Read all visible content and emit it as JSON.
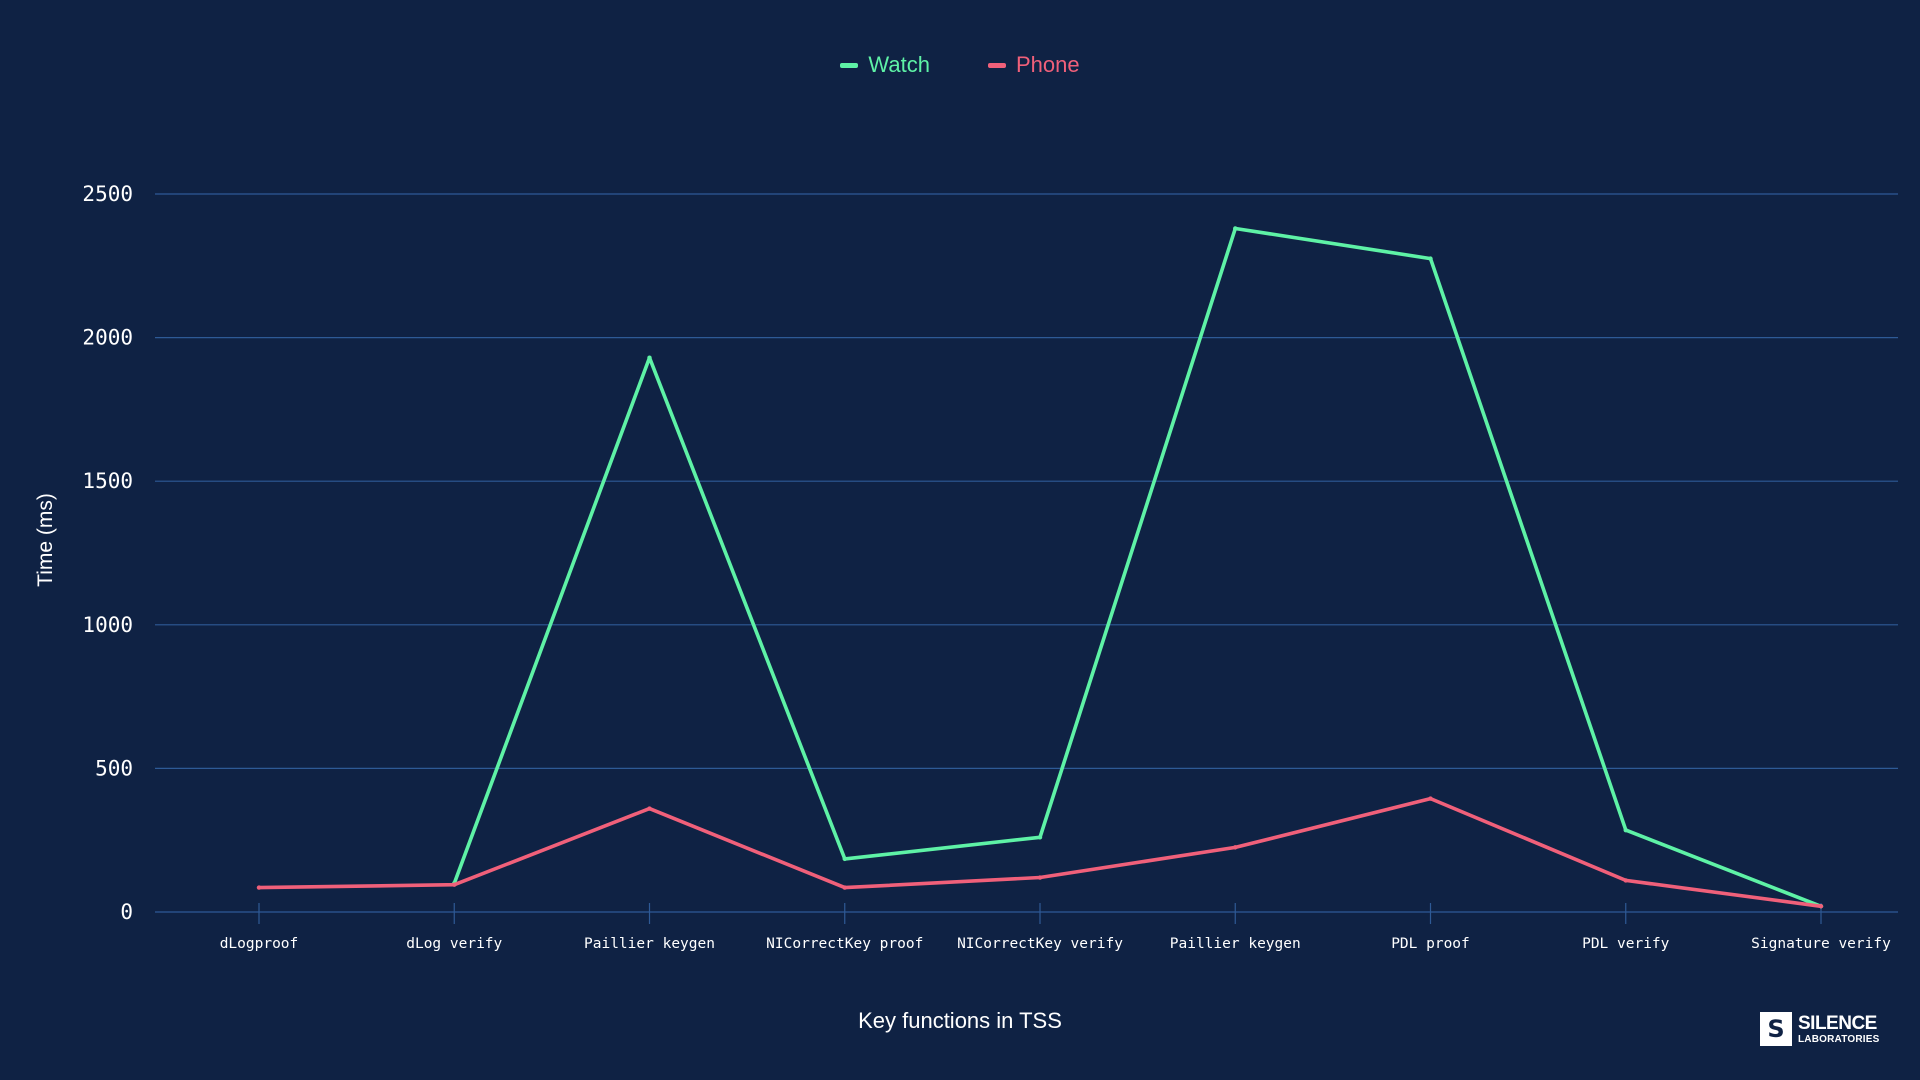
{
  "colors": {
    "background": "#0f2244",
    "grid": "#2e5a96",
    "watch": "#5ef2a6",
    "phone": "#f0607a",
    "text": "#ffffff"
  },
  "chart_data": {
    "type": "line",
    "title": "",
    "xlabel": "Key functions in TSS",
    "ylabel": "Time (ms)",
    "ylim": [
      0,
      2500
    ],
    "yticks": [
      0,
      500,
      1000,
      1500,
      2000,
      2500
    ],
    "grid": true,
    "legend_position": "top-center",
    "categories": [
      "dLogproof",
      "dLog verify",
      "Paillier keygen",
      "NICorrectKey proof",
      "NICorrectKey verify",
      "Paillier keygen",
      "PDL proof",
      "PDL verify",
      "Signature verify"
    ],
    "series": [
      {
        "name": "Watch",
        "color": "#5ef2a6",
        "values": [
          null,
          100,
          1930,
          185,
          260,
          2380,
          2275,
          285,
          20
        ]
      },
      {
        "name": "Phone",
        "color": "#f0607a",
        "values": [
          85,
          95,
          360,
          85,
          120,
          225,
          395,
          110,
          20
        ]
      }
    ]
  },
  "logo": {
    "line1": "SILENCE",
    "line2": "LABORATORIES"
  }
}
